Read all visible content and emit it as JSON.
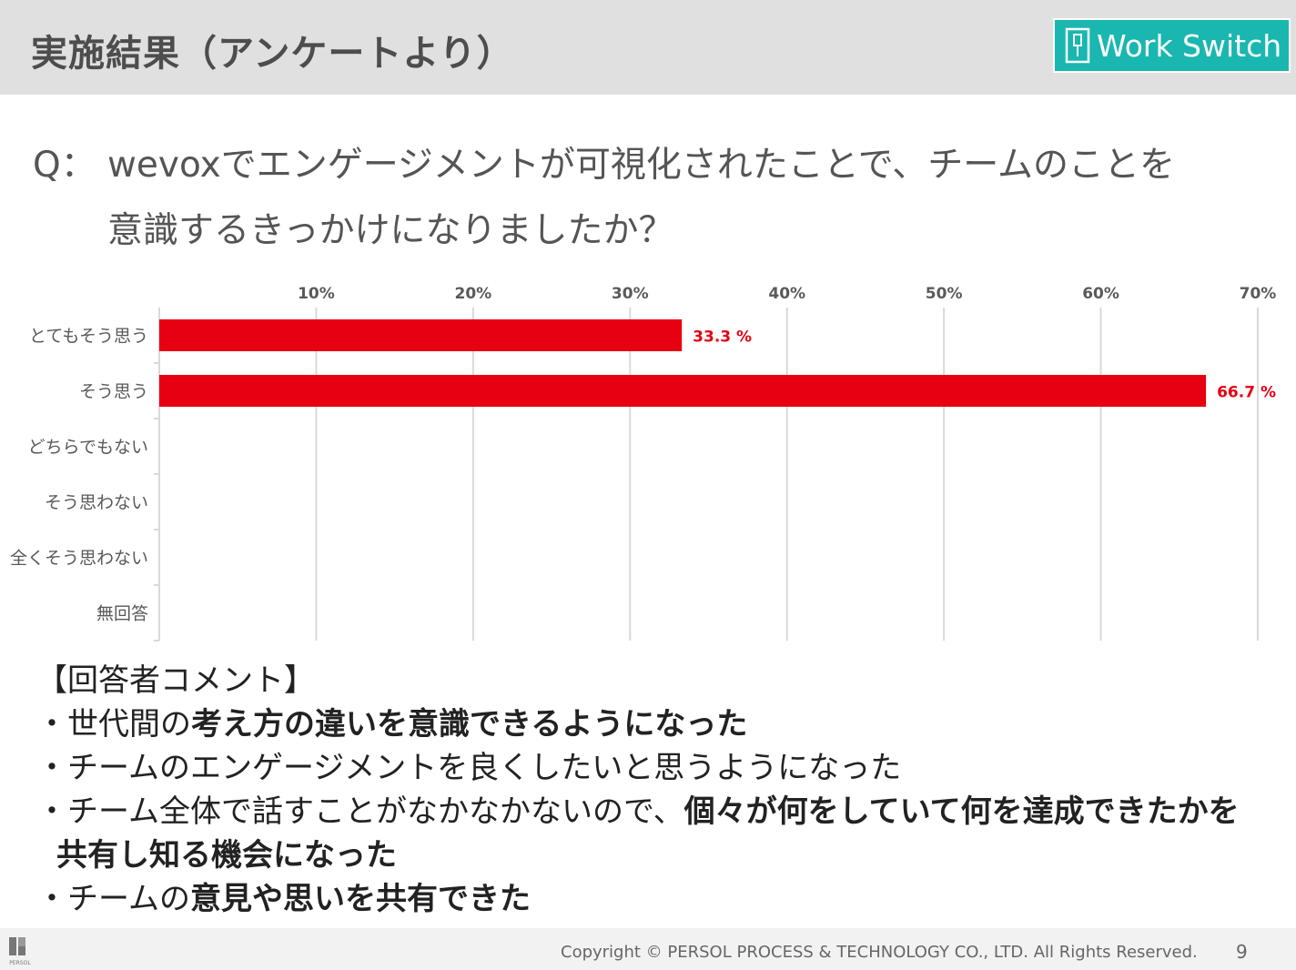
{
  "header": {
    "title": "実施結果（アンケートより）",
    "brand": "Work Switch",
    "brand_color": "#19b7b0"
  },
  "question": {
    "prefix": "Q：",
    "line1": "wevoxでエンゲージメントが可視化されたことで、チームのことを",
    "line2": "意識するきっかけになりましたか？"
  },
  "chart_data": {
    "type": "bar",
    "orientation": "horizontal",
    "categories": [
      "とてもそう思う",
      "そう思う",
      "どちらでもない",
      "そう思わない",
      "全くそう思わない",
      "無回答"
    ],
    "values": [
      33.3,
      66.7,
      0,
      0,
      0,
      0
    ],
    "value_labels": [
      "33.3 %",
      "66.7 %",
      "",
      "",
      "",
      ""
    ],
    "xlim": [
      0,
      70
    ],
    "ticks": [
      10,
      20,
      30,
      40,
      50,
      60,
      70
    ],
    "tick_labels": [
      "10%",
      "20%",
      "30%",
      "40%",
      "50%",
      "60%",
      "70%"
    ],
    "tick_position": "top",
    "grid": true,
    "bar_color": "#e60012",
    "label_color": "#e60012"
  },
  "comments": {
    "heading": "【回答者コメント】",
    "items": [
      {
        "normal": "・世代間の",
        "bold": "考え方の違いを意識できるようになった"
      },
      {
        "normal": "・チームのエンゲージメントを良くしたいと思うようになった",
        "bold": ""
      },
      {
        "normal": "・チーム全体で話すことがなかなかないので、",
        "bold": "個々が何をしていて何を達成できたかを",
        "cont_bold": "共有し知る機会になった"
      },
      {
        "normal": "・チームの",
        "bold": "意見や思いを共有できた"
      }
    ]
  },
  "footer": {
    "copyright": "Copyright © PERSOL PROCESS & TECHNOLOGY CO., LTD. All Rights Reserved.",
    "page_number": "9",
    "logo_text": "PERSOL"
  }
}
